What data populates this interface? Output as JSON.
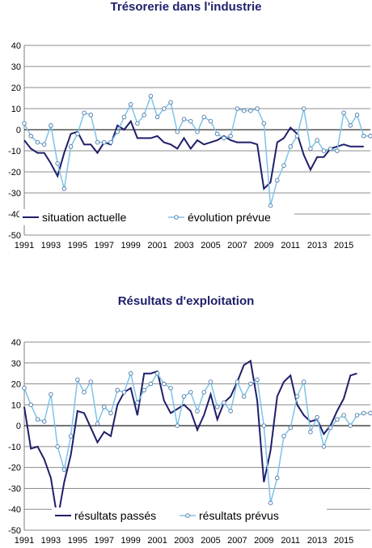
{
  "chart_data": [
    {
      "type": "line",
      "title": "Trésorerie dans l'industrie",
      "ylim": [
        -50,
        40
      ],
      "yticks": [
        40,
        30,
        20,
        10,
        0,
        -10,
        -20,
        -30,
        -40,
        -50
      ],
      "xlim": [
        1991,
        2017
      ],
      "xtick_labels": [
        "1991",
        "1993",
        "1995",
        "1997",
        "1999",
        "2001",
        "2003",
        "2005",
        "2007",
        "2009",
        "2011",
        "2013",
        "2015"
      ],
      "grid": true,
      "legend_position": "bottom-center",
      "series": [
        {
          "name": "situation actuelle",
          "color": "#1f1f6b",
          "marker": "none",
          "x": [
            1991,
            1991.5,
            1992,
            1992.5,
            1993,
            1993.5,
            1994,
            1994.5,
            1995,
            1995.5,
            1996,
            1996.5,
            1997,
            1997.5,
            1998,
            1998.5,
            1999,
            1999.5,
            2000,
            2000.5,
            2001,
            2001.5,
            2002,
            2002.5,
            2003,
            2003.5,
            2004,
            2004.5,
            2005,
            2005.5,
            2006,
            2006.5,
            2007,
            2007.5,
            2008,
            2008.5,
            2009,
            2009.5,
            2010,
            2010.5,
            2011,
            2011.5,
            2012,
            2012.5,
            2013,
            2013.5,
            2014,
            2014.5,
            2015,
            2015.5,
            2016,
            2016.5
          ],
          "y": [
            -5,
            -9,
            -11,
            -11,
            -16,
            -22,
            -11,
            -2,
            -1,
            -7,
            -7,
            -11,
            -6,
            -7,
            2,
            0,
            4,
            -4,
            -4,
            -4,
            -3,
            -6,
            -7,
            -9,
            -4,
            -9,
            -5,
            -7,
            -6,
            -5,
            -3,
            -5,
            -6,
            -6,
            -6,
            -7,
            -28,
            -25,
            -6,
            -4,
            1,
            -2,
            -12,
            -19,
            -13,
            -13,
            -9,
            -8,
            -7,
            -8,
            -8,
            -8
          ]
        },
        {
          "name": "évolution prévue",
          "color": "#7ec3e8",
          "marker": "circle",
          "x": [
            1991,
            1991.5,
            1992,
            1992.5,
            1993,
            1993.5,
            1994,
            1994.5,
            1995,
            1995.5,
            1996,
            1996.5,
            1997,
            1997.5,
            1998,
            1998.5,
            1999,
            1999.5,
            2000,
            2000.5,
            2001,
            2001.5,
            2002,
            2002.5,
            2003,
            2003.5,
            2004,
            2004.5,
            2005,
            2005.5,
            2006,
            2006.5,
            2007,
            2007.5,
            2008,
            2008.5,
            2009,
            2009.5,
            2010,
            2010.5,
            2011,
            2011.5,
            2012,
            2012.5,
            2013,
            2013.5,
            2014,
            2014.5,
            2015,
            2015.5,
            2016,
            2016.5,
            2017
          ],
          "y": [
            3,
            -3,
            -6,
            -7,
            2,
            -16,
            -28,
            -8,
            -2,
            8,
            7,
            -6,
            -6,
            -6,
            -1,
            6,
            12,
            3,
            7,
            16,
            6,
            10,
            13,
            -1,
            5,
            4,
            -1,
            6,
            4,
            -2,
            -4,
            -3,
            10,
            9,
            9,
            10,
            3,
            -36,
            -24,
            -17,
            -8,
            -3,
            10,
            -9,
            -5,
            -10,
            -9,
            -10,
            8,
            2,
            7,
            -3,
            -3
          ]
        }
      ]
    },
    {
      "type": "line",
      "title": "Résultats d'exploitation",
      "ylim": [
        -50,
        40
      ],
      "yticks": [
        40,
        30,
        20,
        10,
        0,
        -10,
        -20,
        -30,
        -40,
        -50
      ],
      "xlim": [
        1991,
        2017
      ],
      "xtick_labels": [
        "1991",
        "1993",
        "1995",
        "1997",
        "1999",
        "2001",
        "2003",
        "2005",
        "2007",
        "2009",
        "2011",
        "2013",
        "2015"
      ],
      "grid": true,
      "legend_position": "bottom-center",
      "series": [
        {
          "name": "résultats passés",
          "color": "#1f1f6b",
          "marker": "none",
          "x": [
            1991,
            1991.5,
            1992,
            1992.5,
            1993,
            1993.5,
            1994,
            1994.5,
            1995,
            1995.5,
            1996,
            1996.5,
            1997,
            1997.5,
            1998,
            1998.5,
            1999,
            1999.5,
            2000,
            2000.5,
            2001,
            2001.5,
            2002,
            2002.5,
            2003,
            2003.5,
            2004,
            2004.5,
            2005,
            2005.5,
            2006,
            2006.5,
            2007,
            2007.5,
            2008,
            2008.5,
            2009,
            2009.5,
            2010,
            2010.5,
            2011,
            2011.5,
            2012,
            2012.5,
            2013,
            2013.5,
            2014,
            2014.5,
            2015,
            2015.5,
            2016,
            2016.5
          ],
          "y": [
            9,
            -11,
            -10,
            -16,
            -25,
            -45,
            -27,
            -14,
            7,
            6,
            -1,
            -8,
            -3,
            -5,
            10,
            16,
            18,
            5,
            25,
            25,
            26,
            12,
            6,
            8,
            10,
            7,
            -2,
            5,
            15,
            3,
            11,
            14,
            21,
            29,
            31,
            12,
            -27,
            -12,
            14,
            21,
            24,
            10,
            5,
            2,
            3,
            -4,
            0,
            7,
            13,
            24,
            25,
            null
          ]
        },
        {
          "name": "résultats prévus",
          "color": "#7ec3e8",
          "marker": "circle",
          "x": [
            1991,
            1991.5,
            1992,
            1992.5,
            1993,
            1993.5,
            1994,
            1994.5,
            1995,
            1995.5,
            1996,
            1996.5,
            1997,
            1997.5,
            1998,
            1998.5,
            1999,
            1999.5,
            2000,
            2000.5,
            2001,
            2001.5,
            2002,
            2002.5,
            2003,
            2003.5,
            2004,
            2004.5,
            2005,
            2005.5,
            2006,
            2006.5,
            2007,
            2007.5,
            2008,
            2008.5,
            2009,
            2009.5,
            2010,
            2010.5,
            2011,
            2011.5,
            2012,
            2012.5,
            2013,
            2013.5,
            2014,
            2014.5,
            2015,
            2015.5,
            2016,
            2016.5,
            2017
          ],
          "y": [
            18,
            10,
            3,
            2,
            15,
            -10,
            -21,
            -5,
            22,
            16,
            21,
            1,
            9,
            6,
            17,
            16,
            25,
            11,
            17,
            20,
            25,
            20,
            18,
            0,
            14,
            16,
            7,
            16,
            21,
            9,
            11,
            7,
            21,
            14,
            20,
            22,
            0,
            -37,
            -25,
            -5,
            -1,
            14,
            21,
            -3,
            4,
            -10,
            -1,
            3,
            5,
            0,
            5,
            6,
            6
          ]
        }
      ]
    }
  ]
}
